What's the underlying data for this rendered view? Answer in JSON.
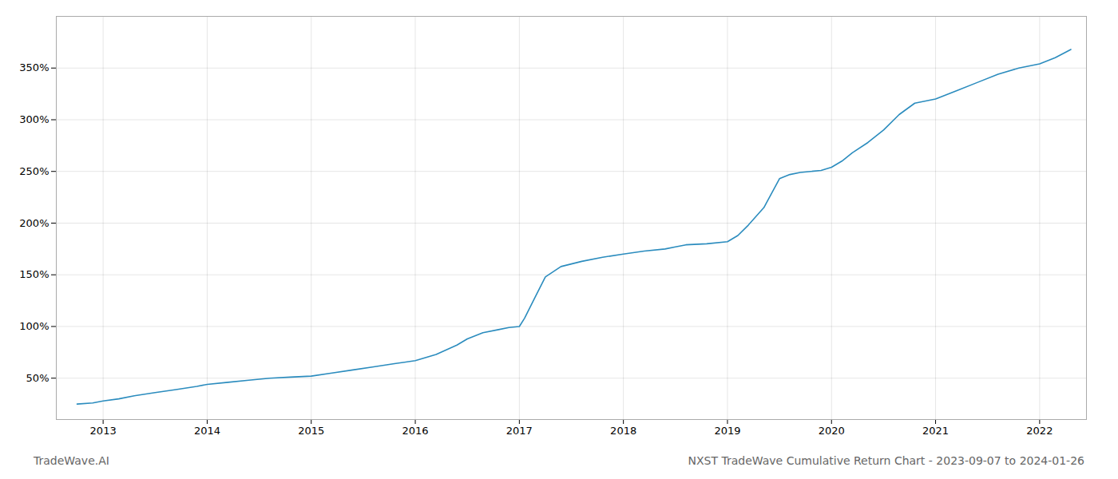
{
  "chart_data": {
    "type": "line",
    "title": "NXST TradeWave Cumulative Return Chart - 2023-09-07 to 2024-01-26",
    "annotations": [
      "TradeWave.AI"
    ],
    "color": "#2b8cbe",
    "grid": true,
    "x": [
      2012.75,
      2012.9,
      2013.0,
      2013.15,
      2013.3,
      2013.5,
      2013.7,
      2013.9,
      2014.0,
      2014.2,
      2014.4,
      2014.6,
      2014.8,
      2015.0,
      2015.2,
      2015.4,
      2015.6,
      2015.8,
      2016.0,
      2016.2,
      2016.4,
      2016.5,
      2016.65,
      2016.8,
      2016.9,
      2017.0,
      2017.05,
      2017.15,
      2017.25,
      2017.4,
      2017.6,
      2017.8,
      2018.0,
      2018.2,
      2018.4,
      2018.5,
      2018.6,
      2018.8,
      2019.0,
      2019.1,
      2019.2,
      2019.35,
      2019.5,
      2019.6,
      2019.7,
      2019.8,
      2019.9,
      2020.0,
      2020.1,
      2020.2,
      2020.35,
      2020.5,
      2020.65,
      2020.8,
      2021.0,
      2021.2,
      2021.4,
      2021.6,
      2021.8,
      2022.0,
      2022.15,
      2022.3
    ],
    "values": [
      25,
      26,
      28,
      30,
      33,
      36,
      39,
      42,
      44,
      46,
      48,
      50,
      51,
      52,
      55,
      58,
      61,
      64,
      67,
      73,
      82,
      88,
      94,
      97,
      99,
      100,
      108,
      128,
      148,
      158,
      163,
      167,
      170,
      173,
      175,
      177,
      179,
      180,
      182,
      188,
      198,
      215,
      243,
      247,
      249,
      250,
      251,
      254,
      260,
      268,
      278,
      290,
      305,
      316,
      320,
      328,
      336,
      344,
      350,
      354,
      360,
      368
    ],
    "xlim": [
      2012.55,
      2022.45
    ],
    "xticks": [
      2013,
      2014,
      2015,
      2016,
      2017,
      2018,
      2019,
      2020,
      2021,
      2022
    ],
    "ylim": [
      10,
      400
    ],
    "yticks": [
      {
        "value": 50,
        "label": "50%"
      },
      {
        "value": 100,
        "label": "100%"
      },
      {
        "value": 150,
        "label": "150%"
      },
      {
        "value": 200,
        "label": "200%"
      },
      {
        "value": 250,
        "label": "250%"
      },
      {
        "value": 300,
        "label": "300%"
      },
      {
        "value": 350,
        "label": "350%"
      }
    ]
  }
}
